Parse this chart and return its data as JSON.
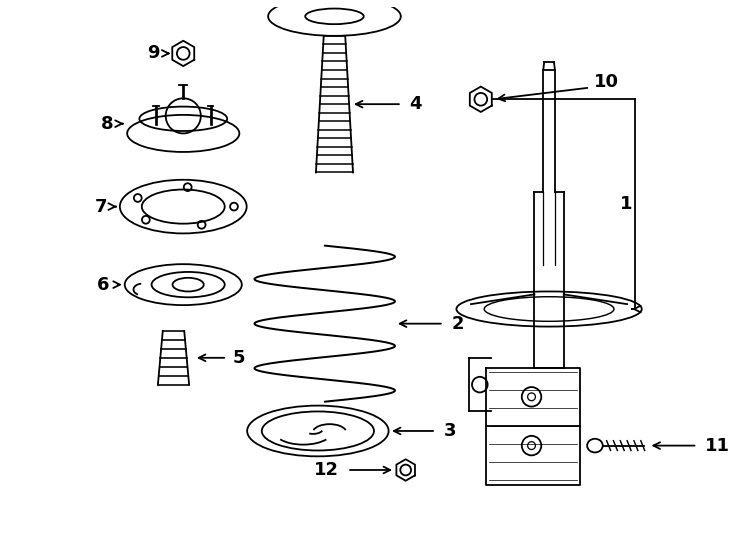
{
  "bg_color": "#ffffff",
  "line_color": "#000000",
  "fig_width": 7.34,
  "fig_height": 5.4,
  "dpi": 100,
  "font_size": 13
}
